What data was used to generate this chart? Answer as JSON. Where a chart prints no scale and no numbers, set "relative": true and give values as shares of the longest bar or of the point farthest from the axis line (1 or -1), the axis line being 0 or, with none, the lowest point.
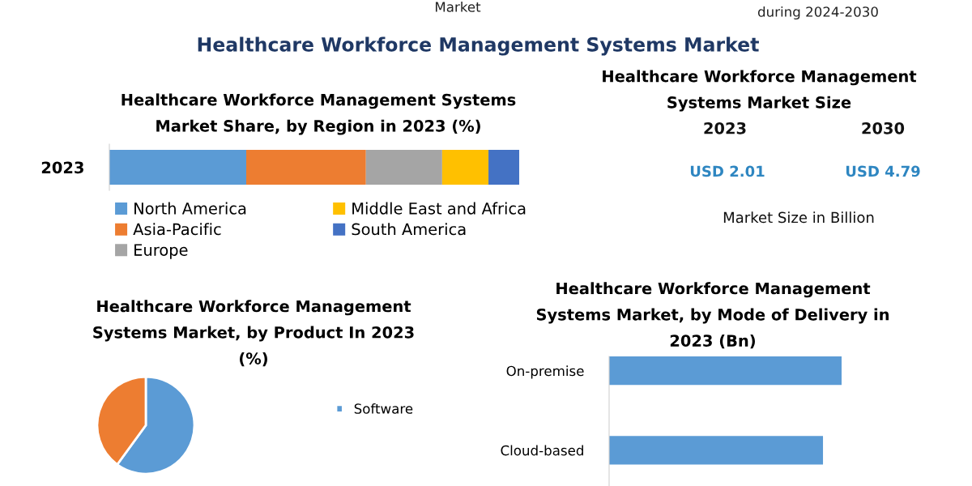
{
  "chart_data": [
    {
      "type": "other",
      "title": "Healthcare Workforce Management Systems Market",
      "annotations": [
        "Market",
        "during 2024-2030"
      ]
    },
    {
      "type": "bar",
      "orientation": "horizontal",
      "stacked": true,
      "relative": true,
      "title": "Healthcare Workforce Management Systems\nMarket Share, by Region in 2023 (%)",
      "categories": [
        "2023"
      ],
      "legend": "bottom",
      "series": [
        {
          "name": "North America",
          "color": "#5b9bd5",
          "values": [
            0.334
          ]
        },
        {
          "name": "Asia-Pacific",
          "color": "#ed7d31",
          "values": [
            0.292
          ]
        },
        {
          "name": "Europe",
          "color": "#a5a5a5",
          "values": [
            0.186
          ]
        },
        {
          "name": "Middle East and Africa",
          "color": "#ffc000",
          "values": [
            0.113
          ]
        },
        {
          "name": "South America",
          "color": "#4472c4",
          "values": [
            0.075
          ]
        }
      ]
    },
    {
      "type": "other",
      "title": "Healthcare Workforce Management\nSystems Market Size",
      "annotations": [
        "2023",
        "2030",
        "USD 2.01",
        "USD 4.79",
        "Market Size in Billion"
      ]
    },
    {
      "type": "pie",
      "title": "Healthcare Workforce Management\nSystems Market, by Product In 2023\n(%)",
      "categories": [
        "Software",
        null
      ],
      "values": [
        60,
        40
      ],
      "colors": [
        "#5b9bd5",
        "#ed7d31"
      ],
      "legend": "right"
    },
    {
      "type": "bar",
      "orientation": "horizontal",
      "relative": true,
      "title": "Healthcare Workforce Management\nSystems Market, by Mode of Delivery in\n2023 (Bn)",
      "categories": [
        "On-premise",
        "Cloud-based"
      ],
      "values": [
        1,
        0.92
      ],
      "color": "#5b9bd5"
    }
  ]
}
